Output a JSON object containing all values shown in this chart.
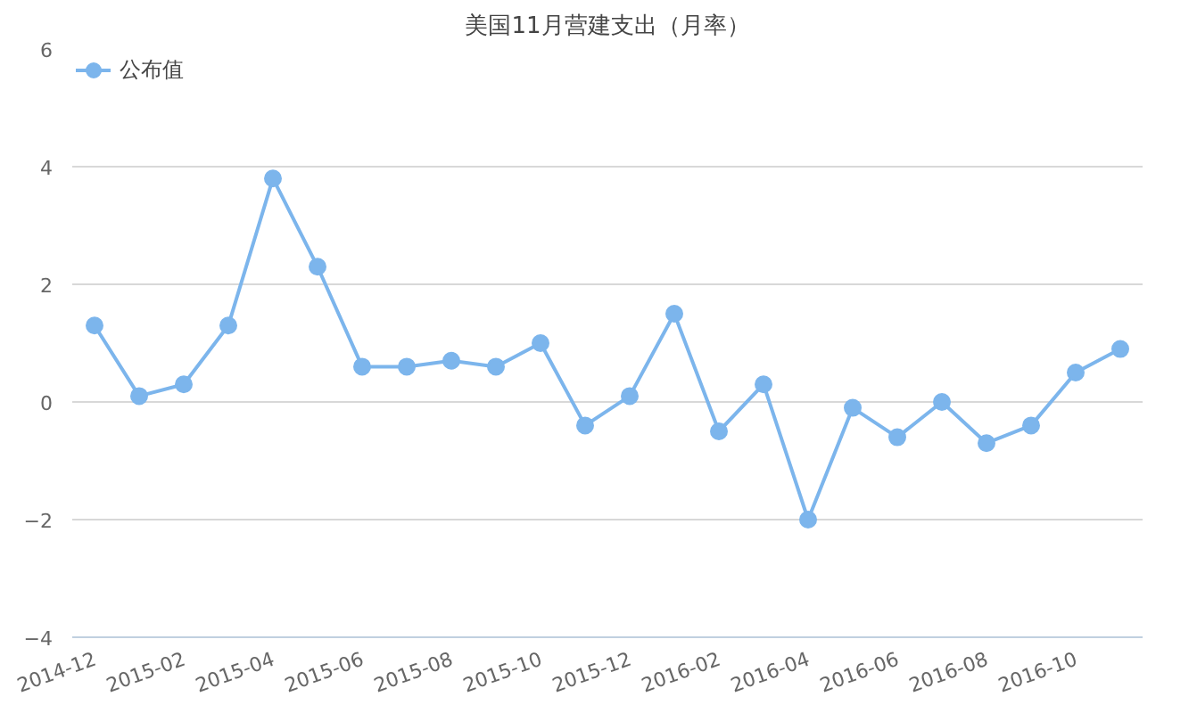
{
  "chart_data": {
    "type": "line",
    "title": "美国11月营建支出（月率）",
    "categories": [
      "2014-12",
      null,
      "2015-02",
      null,
      "2015-04",
      null,
      "2015-06",
      null,
      "2015-08",
      null,
      "2015-10",
      null,
      "2015-12",
      null,
      "2016-02",
      null,
      "2016-04",
      null,
      "2016-06",
      null,
      "2016-08",
      null,
      "2016-10",
      null
    ],
    "series": [
      {
        "name": "公布值",
        "color": "#7cb5ec",
        "values": [
          1.3,
          0.1,
          0.3,
          1.3,
          3.8,
          2.3,
          0.6,
          0.6,
          0.7,
          0.6,
          1.0,
          -0.4,
          0.1,
          1.5,
          -0.5,
          0.3,
          -2.0,
          -0.1,
          -0.6,
          0.0,
          -0.7,
          -0.4,
          0.5,
          0.9
        ]
      }
    ],
    "ylim": [
      -4,
      6
    ],
    "yticks": [
      -4,
      -2,
      0,
      2,
      4,
      6
    ],
    "grid": "y",
    "legend": "top left",
    "marker": "circle",
    "line_style": "solid"
  }
}
